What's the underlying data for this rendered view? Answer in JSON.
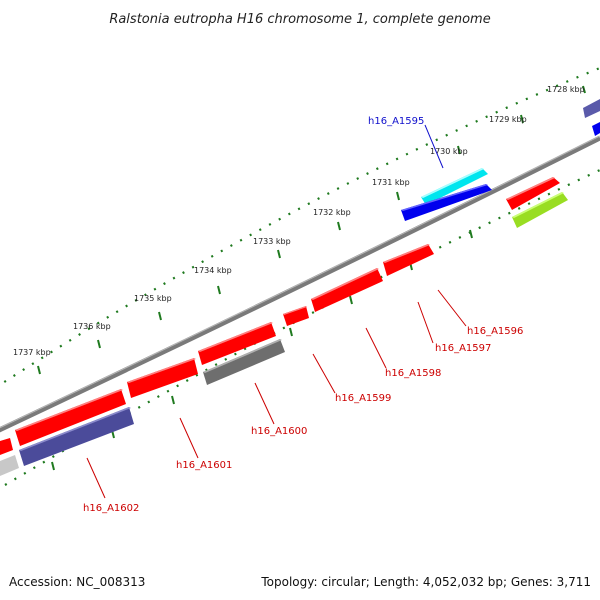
{
  "title": "Ralstonia eutropha H16 chromosome 1, complete genome",
  "accession": "Accession: NC_008313",
  "summary": "Topology: circular; Length: 4,052,032 bp; Genes: 3,711",
  "ticks": [
    "1728 kbp",
    "1729 kbp",
    "1730 kbp",
    "1731 kbp",
    "1732 kbp",
    "1733 kbp",
    "1734 kbp",
    "1735 kbp",
    "1736 kbp",
    "1737 kbp"
  ],
  "gene_labels": [
    "h16_A1595",
    "h16_A1596",
    "h16_A1597",
    "h16_A1598",
    "h16_A1599",
    "h16_A1600",
    "h16_A1601",
    "h16_A1602"
  ],
  "colors": {
    "backbone": "#7a7a7a",
    "ruler": "#1f7a1f",
    "forward_red": "#ff0000",
    "cyan": "#00e5ee",
    "blue": "#0000ee",
    "slate": "#4b4b9a",
    "gray": "#6e6e6e",
    "lime": "#99dd22",
    "label_blue": "#1010cc",
    "label_red": "#cc0000"
  }
}
